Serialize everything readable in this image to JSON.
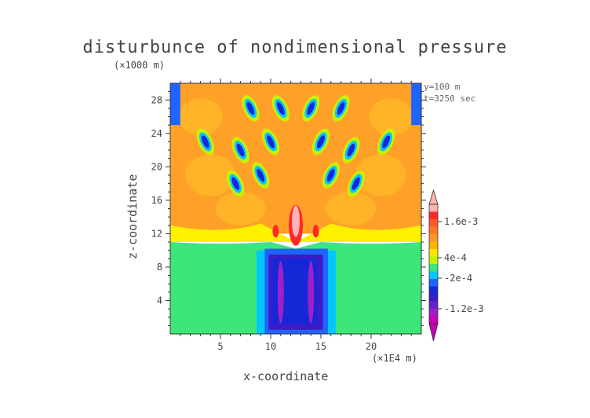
{
  "chart_data": {
    "type": "heatmap",
    "title": "disturbunce of nondimensional pressure",
    "xlabel": "x-coordinate",
    "ylabel": "z-coordinate",
    "x_unit": "(×1E4 m)",
    "y_unit": "(×1000 m)",
    "annotations": [
      "y=100 m",
      "t=3250 sec"
    ],
    "xlim": [
      0,
      25
    ],
    "ylim": [
      0,
      30
    ],
    "x_ticks": [
      5,
      10,
      15,
      20
    ],
    "y_ticks": [
      4,
      8,
      12,
      16,
      20,
      24,
      28
    ],
    "colorbar_labels": [
      "1.6e-3",
      "4e-4",
      "-2e-4",
      "-1.2e-3"
    ],
    "colorbar_levels": [
      {
        "color": "#c800b4"
      },
      {
        "color": "#a020c8"
      },
      {
        "color": "#6a1fc8"
      },
      {
        "color": "#3a1cc8"
      },
      {
        "color": "#1428d8"
      },
      {
        "color": "#1e64ff"
      },
      {
        "color": "#00c8ff"
      },
      {
        "color": "#3ce678"
      },
      {
        "color": "#c8f000"
      },
      {
        "color": "#ffe600"
      },
      {
        "color": "#ffb400"
      },
      {
        "color": "#ff9628"
      },
      {
        "color": "#ff7828"
      },
      {
        "color": "#ff5a28"
      },
      {
        "color": "#ff2828"
      },
      {
        "color": "#ffb4b4"
      }
    ],
    "colors": {
      "background_field": "#ffa028",
      "lower_field": "#3ce678",
      "yellow_band": "#fff000",
      "low_core": "#3a1cc8",
      "low_center": "#1428d8",
      "peak": "#ffb4b4"
    }
  }
}
